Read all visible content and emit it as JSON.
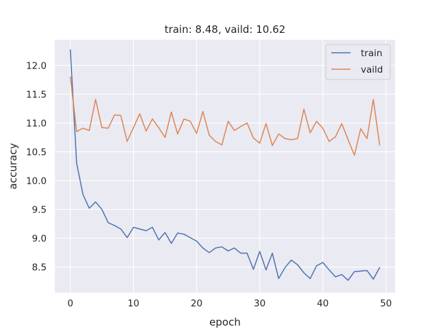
{
  "chart_data": {
    "type": "line",
    "title": "train: 8.48, vaild: 10.62",
    "xlabel": "epoch",
    "ylabel": "accuracy",
    "xlim": [
      -2.45,
      51.45
    ],
    "ylim": [
      8.055,
      12.445
    ],
    "xticks": [
      0,
      10,
      20,
      30,
      40,
      50
    ],
    "yticks": [
      8.5,
      9.0,
      9.5,
      10.0,
      10.5,
      11.0,
      11.5,
      12.0
    ],
    "xtick_labels": [
      "0",
      "10",
      "20",
      "30",
      "40",
      "50"
    ],
    "ytick_labels": [
      "8.5",
      "9.0",
      "9.5",
      "10.0",
      "10.5",
      "11.0",
      "11.5",
      "12.0"
    ],
    "grid": true,
    "legend_position": "top-right",
    "x": [
      0,
      1,
      2,
      3,
      4,
      5,
      6,
      7,
      8,
      9,
      10,
      11,
      12,
      13,
      14,
      15,
      16,
      17,
      18,
      19,
      20,
      21,
      22,
      23,
      24,
      25,
      26,
      27,
      28,
      29,
      30,
      31,
      32,
      33,
      34,
      35,
      36,
      37,
      38,
      39,
      40,
      41,
      42,
      43,
      44,
      45,
      46,
      47,
      48,
      49
    ],
    "series": [
      {
        "name": "train",
        "color": "#4c72b0",
        "values": [
          12.27,
          10.3,
          9.76,
          9.52,
          9.63,
          9.5,
          9.27,
          9.22,
          9.16,
          9.01,
          9.19,
          9.16,
          9.13,
          9.19,
          8.97,
          9.1,
          8.91,
          9.09,
          9.07,
          9.01,
          8.95,
          8.83,
          8.75,
          8.83,
          8.85,
          8.78,
          8.83,
          8.74,
          8.74,
          8.46,
          8.77,
          8.45,
          8.74,
          8.3,
          8.49,
          8.62,
          8.54,
          8.4,
          8.3,
          8.52,
          8.58,
          8.45,
          8.33,
          8.37,
          8.27,
          8.42,
          8.43,
          8.44,
          8.29,
          8.49
        ]
      },
      {
        "name": "vaild",
        "color": "#dd8452",
        "values": [
          11.8,
          10.85,
          10.91,
          10.87,
          11.41,
          10.92,
          10.91,
          11.14,
          11.13,
          10.68,
          10.92,
          11.16,
          10.86,
          11.07,
          10.92,
          10.75,
          11.19,
          10.81,
          11.07,
          11.03,
          10.82,
          11.2,
          10.79,
          10.68,
          10.62,
          11.03,
          10.87,
          10.94,
          11.0,
          10.74,
          10.65,
          10.99,
          10.61,
          10.81,
          10.73,
          10.71,
          10.73,
          11.24,
          10.83,
          11.03,
          10.91,
          10.68,
          10.76,
          10.99,
          10.71,
          10.44,
          10.9,
          10.73,
          11.41,
          10.62
        ]
      }
    ]
  }
}
